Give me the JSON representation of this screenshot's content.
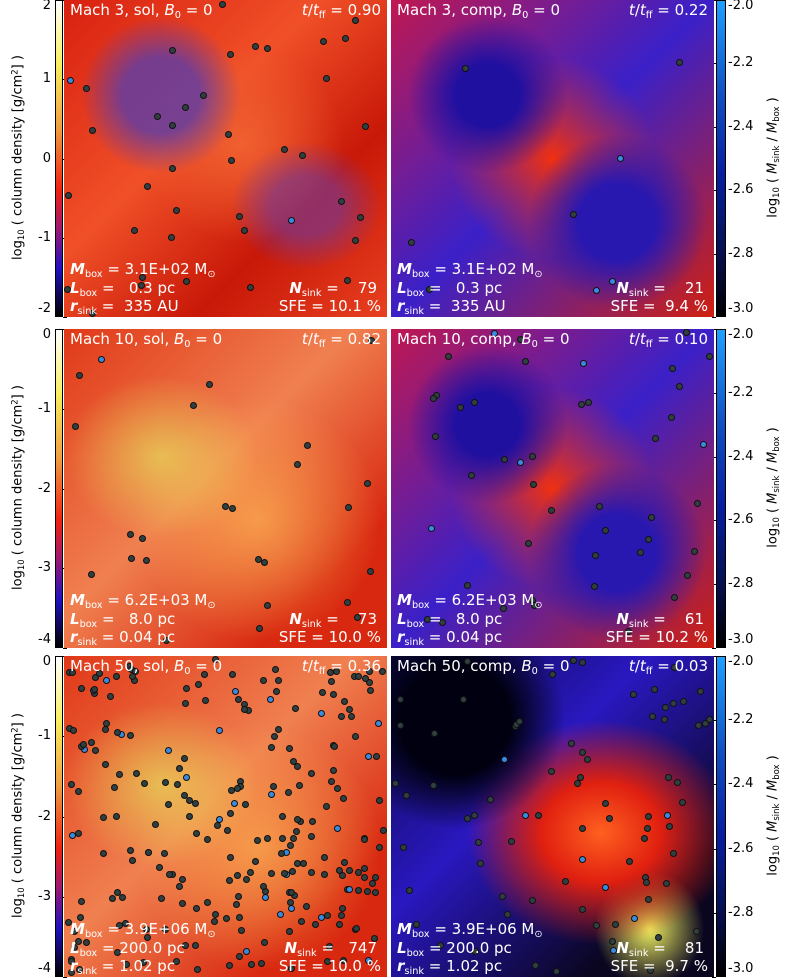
{
  "rows": [
    {
      "left_colorbar": {
        "label": [
          {
            "text": "log"
          },
          {
            "text": "10",
            "style": "sub"
          },
          {
            "text": " ( column density [g/cm"
          },
          {
            "text": "2",
            "style": "sup"
          },
          {
            "text": "] )"
          }
        ],
        "ticks": [
          2,
          1,
          0,
          -1,
          -2
        ]
      },
      "right_colorbar": {
        "label": [
          {
            "text": "log"
          },
          {
            "text": "10",
            "style": "sub"
          },
          {
            "text": " ( "
          },
          {
            "text": "M",
            "style": "i"
          },
          {
            "text": "sink",
            "style": "sub"
          },
          {
            "text": " / "
          },
          {
            "text": "M",
            "style": "i"
          },
          {
            "text": "box",
            "style": "sub"
          },
          {
            "text": " )"
          }
        ],
        "ticks": [
          {
            "value": -2,
            "label": "-2.0"
          },
          {
            "value": -2.2,
            "label": "-2.2"
          },
          {
            "value": -2.4,
            "label": "-2.4"
          },
          {
            "value": -2.6,
            "label": "-2.6"
          },
          {
            "value": -2.8,
            "label": "-2.8"
          },
          {
            "value": -3,
            "label": "-3.0"
          }
        ]
      },
      "panels": [
        {
          "title": [
            {
              "text": "Mach 3, sol, "
            },
            {
              "text": "B",
              "style": "i"
            },
            {
              "text": "0",
              "style": "sub"
            },
            {
              "text": " = 0"
            }
          ],
          "time": [
            {
              "text": "t",
              "style": "i"
            },
            {
              "text": "/"
            },
            {
              "text": "t",
              "style": "i"
            },
            {
              "text": "ff",
              "style": "sub"
            },
            {
              "text": " = 0.90"
            }
          ],
          "mbox": [
            {
              "text": "M",
              "style": "bi"
            },
            {
              "text": "box",
              "style": "sub"
            },
            {
              "text": " = 3.1E+02 M"
            },
            {
              "text": "⊙",
              "style": "sub"
            }
          ],
          "lbox": [
            {
              "text": "L",
              "style": "bi"
            },
            {
              "text": "box",
              "style": "sub"
            },
            {
              "text": " =   0.3 pc"
            }
          ],
          "rsink": [
            {
              "text": "r",
              "style": "bi"
            },
            {
              "text": "sink",
              "style": "sub"
            },
            {
              "text": " =  335 AU"
            }
          ],
          "nsink": [
            {
              "text": "N",
              "style": "bi"
            },
            {
              "text": "sink",
              "style": "sub"
            },
            {
              "text": " =    79"
            }
          ],
          "sfe": [
            {
              "text": "SFE = 10.1 %"
            }
          ]
        },
        {
          "title": [
            {
              "text": "Mach 3, comp, "
            },
            {
              "text": "B",
              "style": "i"
            },
            {
              "text": "0",
              "style": "sub"
            },
            {
              "text": " = 0"
            }
          ],
          "time": [
            {
              "text": "t",
              "style": "i"
            },
            {
              "text": "/"
            },
            {
              "text": "t",
              "style": "i"
            },
            {
              "text": "ff",
              "style": "sub"
            },
            {
              "text": " = 0.22"
            }
          ],
          "mbox": [
            {
              "text": "M",
              "style": "bi"
            },
            {
              "text": "box",
              "style": "sub"
            },
            {
              "text": " = 3.1E+02 M"
            },
            {
              "text": "⊙",
              "style": "sub"
            }
          ],
          "lbox": [
            {
              "text": "L",
              "style": "bi"
            },
            {
              "text": "box",
              "style": "sub"
            },
            {
              "text": " =   0.3 pc"
            }
          ],
          "rsink": [
            {
              "text": "r",
              "style": "bi"
            },
            {
              "text": "sink",
              "style": "sub"
            },
            {
              "text": " =  335 AU"
            }
          ],
          "nsink": [
            {
              "text": "N",
              "style": "bi"
            },
            {
              "text": "sink",
              "style": "sub"
            },
            {
              "text": " =    21"
            }
          ],
          "sfe": [
            {
              "text": "SFE =  9.4 %"
            }
          ]
        }
      ]
    },
    {
      "left_colorbar": {
        "label": [
          {
            "text": "log"
          },
          {
            "text": "10",
            "style": "sub"
          },
          {
            "text": " ( column density [g/cm"
          },
          {
            "text": "2",
            "style": "sup"
          },
          {
            "text": "] )"
          }
        ],
        "ticks": [
          0,
          -1,
          -2,
          -3,
          -4
        ]
      },
      "right_colorbar": {
        "label": [
          {
            "text": "log"
          },
          {
            "text": "10",
            "style": "sub"
          },
          {
            "text": " ( "
          },
          {
            "text": "M",
            "style": "i"
          },
          {
            "text": "sink",
            "style": "sub"
          },
          {
            "text": " / "
          },
          {
            "text": "M",
            "style": "i"
          },
          {
            "text": "box",
            "style": "sub"
          },
          {
            "text": " )"
          }
        ],
        "ticks": [
          {
            "value": -2,
            "label": "-2.0"
          },
          {
            "value": -2.2,
            "label": "-2.2"
          },
          {
            "value": -2.4,
            "label": "-2.4"
          },
          {
            "value": -2.6,
            "label": "-2.6"
          },
          {
            "value": -2.8,
            "label": "-2.8"
          },
          {
            "value": -3,
            "label": "-3.0"
          }
        ]
      },
      "panels": [
        {
          "title": [
            {
              "text": "Mach 10, sol, "
            },
            {
              "text": "B",
              "style": "i"
            },
            {
              "text": "0",
              "style": "sub"
            },
            {
              "text": " = 0"
            }
          ],
          "time": [
            {
              "text": "t",
              "style": "i"
            },
            {
              "text": "/"
            },
            {
              "text": "t",
              "style": "i"
            },
            {
              "text": "ff",
              "style": "sub"
            },
            {
              "text": " = 0.82"
            }
          ],
          "mbox": [
            {
              "text": "M",
              "style": "bi"
            },
            {
              "text": "box",
              "style": "sub"
            },
            {
              "text": " = 6.2E+03 M"
            },
            {
              "text": "⊙",
              "style": "sub"
            }
          ],
          "lbox": [
            {
              "text": "L",
              "style": "bi"
            },
            {
              "text": "box",
              "style": "sub"
            },
            {
              "text": " =   8.0 pc"
            }
          ],
          "rsink": [
            {
              "text": "r",
              "style": "bi"
            },
            {
              "text": "sink",
              "style": "sub"
            },
            {
              "text": " = 0.04 pc"
            }
          ],
          "nsink": [
            {
              "text": "N",
              "style": "bi"
            },
            {
              "text": "sink",
              "style": "sub"
            },
            {
              "text": " =    73"
            }
          ],
          "sfe": [
            {
              "text": "SFE = 10.0 %"
            }
          ]
        },
        {
          "title": [
            {
              "text": "Mach 10, comp, "
            },
            {
              "text": "B",
              "style": "i"
            },
            {
              "text": "0",
              "style": "sub"
            },
            {
              "text": " = 0"
            }
          ],
          "time": [
            {
              "text": "t",
              "style": "i"
            },
            {
              "text": "/"
            },
            {
              "text": "t",
              "style": "i"
            },
            {
              "text": "ff",
              "style": "sub"
            },
            {
              "text": " = 0.10"
            }
          ],
          "mbox": [
            {
              "text": "M",
              "style": "bi"
            },
            {
              "text": "box",
              "style": "sub"
            },
            {
              "text": " = 6.2E+03 M"
            },
            {
              "text": "⊙",
              "style": "sub"
            }
          ],
          "lbox": [
            {
              "text": "L",
              "style": "bi"
            },
            {
              "text": "box",
              "style": "sub"
            },
            {
              "text": " =   8.0 pc"
            }
          ],
          "rsink": [
            {
              "text": "r",
              "style": "bi"
            },
            {
              "text": "sink",
              "style": "sub"
            },
            {
              "text": " = 0.04 pc"
            }
          ],
          "nsink": [
            {
              "text": "N",
              "style": "bi"
            },
            {
              "text": "sink",
              "style": "sub"
            },
            {
              "text": " =    61"
            }
          ],
          "sfe": [
            {
              "text": "SFE = 10.2 %"
            }
          ]
        }
      ]
    },
    {
      "left_colorbar": {
        "label": [
          {
            "text": "log"
          },
          {
            "text": "10",
            "style": "sub"
          },
          {
            "text": " ( column density [g/cm"
          },
          {
            "text": "2",
            "style": "sup"
          },
          {
            "text": "] )"
          }
        ],
        "ticks": [
          0,
          -1,
          -2,
          -3,
          -4
        ]
      },
      "right_colorbar": {
        "label": [
          {
            "text": "log"
          },
          {
            "text": "10",
            "style": "sub"
          },
          {
            "text": " ( "
          },
          {
            "text": "M",
            "style": "i"
          },
          {
            "text": "sink",
            "style": "sub"
          },
          {
            "text": " / "
          },
          {
            "text": "M",
            "style": "i"
          },
          {
            "text": "box",
            "style": "sub"
          },
          {
            "text": " )"
          }
        ],
        "ticks": [
          {
            "value": -2,
            "label": "-2.0"
          },
          {
            "value": -2.2,
            "label": "-2.2"
          },
          {
            "value": -2.4,
            "label": "-2.4"
          },
          {
            "value": -2.6,
            "label": "-2.6"
          },
          {
            "value": -2.8,
            "label": "-2.8"
          },
          {
            "value": -3,
            "label": "-3.0"
          }
        ]
      },
      "panels": [
        {
          "title": [
            {
              "text": "Mach 50, sol, "
            },
            {
              "text": "B",
              "style": "i"
            },
            {
              "text": "0",
              "style": "sub"
            },
            {
              "text": " = 0"
            }
          ],
          "time": [
            {
              "text": "t",
              "style": "i"
            },
            {
              "text": "/"
            },
            {
              "text": "t",
              "style": "i"
            },
            {
              "text": "ff",
              "style": "sub"
            },
            {
              "text": " = 0.36"
            }
          ],
          "mbox": [
            {
              "text": "M",
              "style": "bi"
            },
            {
              "text": "box",
              "style": "sub"
            },
            {
              "text": " = 3.9E+06 M"
            },
            {
              "text": "⊙",
              "style": "sub"
            }
          ],
          "lbox": [
            {
              "text": "L",
              "style": "bi"
            },
            {
              "text": "box",
              "style": "sub"
            },
            {
              "text": " = 200.0 pc"
            }
          ],
          "rsink": [
            {
              "text": "r",
              "style": "bi"
            },
            {
              "text": "sink",
              "style": "sub"
            },
            {
              "text": " = 1.02 pc"
            }
          ],
          "nsink": [
            {
              "text": "N",
              "style": "bi"
            },
            {
              "text": "sink",
              "style": "sub"
            },
            {
              "text": " =   747"
            }
          ],
          "sfe": [
            {
              "text": "SFE = 10.0 %"
            }
          ]
        },
        {
          "title": [
            {
              "text": "Mach 50, comp, "
            },
            {
              "text": "B",
              "style": "i"
            },
            {
              "text": "0",
              "style": "sub"
            },
            {
              "text": " = 0"
            }
          ],
          "time": [
            {
              "text": "t",
              "style": "i"
            },
            {
              "text": "/"
            },
            {
              "text": "t",
              "style": "i"
            },
            {
              "text": "ff",
              "style": "sub"
            },
            {
              "text": " = 0.03"
            }
          ],
          "mbox": [
            {
              "text": "M",
              "style": "bi"
            },
            {
              "text": "box",
              "style": "sub"
            },
            {
              "text": " = 3.9E+06 M"
            },
            {
              "text": "⊙",
              "style": "sub"
            }
          ],
          "lbox": [
            {
              "text": "L",
              "style": "bi"
            },
            {
              "text": "box",
              "style": "sub"
            },
            {
              "text": " = 200.0 pc"
            }
          ],
          "rsink": [
            {
              "text": "r",
              "style": "bi"
            },
            {
              "text": "sink",
              "style": "sub"
            },
            {
              "text": " = 1.02 pc"
            }
          ],
          "nsink": [
            {
              "text": "N",
              "style": "bi"
            },
            {
              "text": "sink",
              "style": "sub"
            },
            {
              "text": " =    81"
            }
          ],
          "sfe": [
            {
              "text": "SFE =  9.7 %"
            }
          ]
        }
      ]
    }
  ]
}
